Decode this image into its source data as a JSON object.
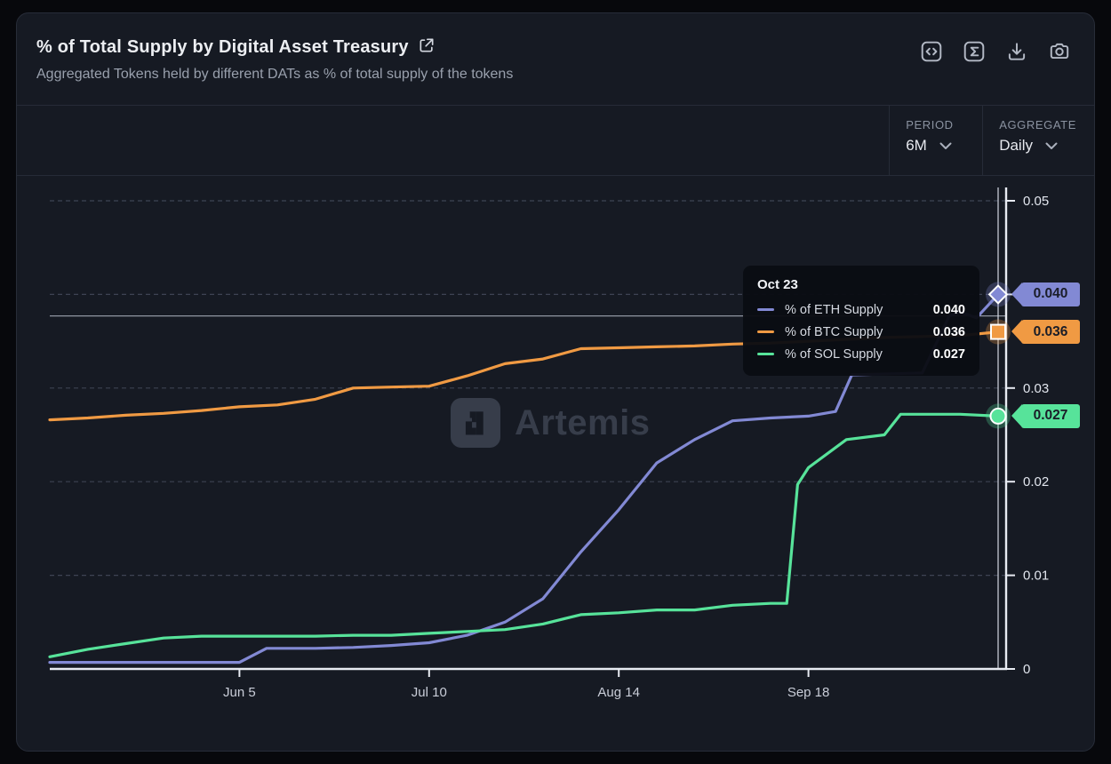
{
  "header": {
    "title": "% of Total Supply by Digital Asset Treasury",
    "subtitle": "Aggregated Tokens held by different DATs as % of total supply of the tokens",
    "toolbar": [
      {
        "name": "embed-code",
        "icon": "code-icon"
      },
      {
        "name": "formula",
        "icon": "sigma-icon"
      },
      {
        "name": "download",
        "icon": "download-icon"
      },
      {
        "name": "snapshot",
        "icon": "camera-icon"
      }
    ]
  },
  "controls": {
    "period": {
      "label": "PERIOD",
      "value": "6M"
    },
    "aggregate": {
      "label": "AGGREGATE",
      "value": "Daily"
    }
  },
  "watermark": {
    "text": "Artemis"
  },
  "tooltip": {
    "date": "Oct 23",
    "rows": [
      {
        "label": "% of ETH Supply",
        "value": "0.040",
        "color": "#8289d4"
      },
      {
        "label": "% of BTC Supply",
        "value": "0.036",
        "color": "#f09a43"
      },
      {
        "label": "% of SOL Supply",
        "value": "0.027",
        "color": "#57e39a"
      }
    ]
  },
  "badges": [
    {
      "value": "0.040",
      "color": "#8289d4",
      "at": 0.04
    },
    {
      "value": "0.036",
      "color": "#f09a43",
      "at": 0.036
    },
    {
      "value": "0.027",
      "color": "#57e39a",
      "at": 0.027
    }
  ],
  "legend": [
    {
      "label": "% of BTC Supply",
      "color": "#f09a43"
    },
    {
      "label": "% of ETH Supply",
      "color": "#8289d4"
    },
    {
      "label": "% of SOL Supply",
      "color": "#57e39a"
    }
  ],
  "chart_data": {
    "type": "line",
    "title": "% of Total Supply by Digital Asset Treasury",
    "x_unit": "days since May 1",
    "xlim_days": [
      0,
      175
    ],
    "ylim": [
      0,
      0.05
    ],
    "grid": "dashed-horizontal",
    "legend_position": "bottom-left",
    "x_ticks": [
      {
        "day": 35,
        "label": "Jun 5"
      },
      {
        "day": 70,
        "label": "Jul 10"
      },
      {
        "day": 105,
        "label": "Aug 14"
      },
      {
        "day": 140,
        "label": "Sep 18"
      }
    ],
    "y_ticks": [
      {
        "v": 0,
        "label": "0"
      },
      {
        "v": 0.01,
        "label": "0.01"
      },
      {
        "v": 0.02,
        "label": "0.02"
      },
      {
        "v": 0.03,
        "label": "0.03"
      },
      {
        "v": 0.04,
        "label": ""
      },
      {
        "v": 0.05,
        "label": "0.05"
      }
    ],
    "hover": {
      "date": "Oct 23",
      "day": 175,
      "crosshair_value": 0.0377
    },
    "series": [
      {
        "name": "% of BTC Supply",
        "color": "#f09a43",
        "marker": "square",
        "end_value": 0.036,
        "points": [
          [
            0,
            0.0266
          ],
          [
            7,
            0.0268
          ],
          [
            14,
            0.0271
          ],
          [
            21,
            0.0273
          ],
          [
            28,
            0.0276
          ],
          [
            35,
            0.028
          ],
          [
            42,
            0.0282
          ],
          [
            49,
            0.0288
          ],
          [
            56,
            0.03
          ],
          [
            63,
            0.0301
          ],
          [
            70,
            0.0302
          ],
          [
            77,
            0.0313
          ],
          [
            84,
            0.0326
          ],
          [
            91,
            0.0331
          ],
          [
            98,
            0.0342
          ],
          [
            105,
            0.0343
          ],
          [
            112,
            0.0344
          ],
          [
            119,
            0.0345
          ],
          [
            126,
            0.0347
          ],
          [
            133,
            0.0348
          ],
          [
            140,
            0.035
          ],
          [
            147,
            0.0352
          ],
          [
            154,
            0.0354
          ],
          [
            161,
            0.0355
          ],
          [
            168,
            0.0356
          ],
          [
            175,
            0.036
          ]
        ]
      },
      {
        "name": "% of ETH Supply",
        "color": "#8289d4",
        "marker": "diamond",
        "end_value": 0.04,
        "points": [
          [
            0,
            0.0007
          ],
          [
            7,
            0.0007
          ],
          [
            14,
            0.0007
          ],
          [
            21,
            0.0007
          ],
          [
            28,
            0.0007
          ],
          [
            35,
            0.0007
          ],
          [
            40,
            0.0022
          ],
          [
            49,
            0.0022
          ],
          [
            56,
            0.0023
          ],
          [
            63,
            0.0025
          ],
          [
            70,
            0.0028
          ],
          [
            77,
            0.0036
          ],
          [
            84,
            0.005
          ],
          [
            91,
            0.0075
          ],
          [
            98,
            0.0125
          ],
          [
            105,
            0.017
          ],
          [
            112,
            0.022
          ],
          [
            119,
            0.0245
          ],
          [
            126,
            0.0265
          ],
          [
            133,
            0.0268
          ],
          [
            140,
            0.027
          ],
          [
            145,
            0.0275
          ],
          [
            148,
            0.0314
          ],
          [
            154,
            0.0315
          ],
          [
            161,
            0.0316
          ],
          [
            166,
            0.0377
          ],
          [
            168,
            0.0381
          ],
          [
            171,
            0.0375
          ],
          [
            175,
            0.04
          ]
        ]
      },
      {
        "name": "% of SOL Supply",
        "color": "#57e39a",
        "marker": "circle",
        "end_value": 0.027,
        "points": [
          [
            0,
            0.0013
          ],
          [
            7,
            0.0021
          ],
          [
            14,
            0.0027
          ],
          [
            21,
            0.0033
          ],
          [
            28,
            0.0035
          ],
          [
            35,
            0.0035
          ],
          [
            42,
            0.0035
          ],
          [
            49,
            0.0035
          ],
          [
            56,
            0.0036
          ],
          [
            63,
            0.0036
          ],
          [
            70,
            0.0038
          ],
          [
            77,
            0.004
          ],
          [
            84,
            0.0042
          ],
          [
            91,
            0.0048
          ],
          [
            98,
            0.0058
          ],
          [
            105,
            0.006
          ],
          [
            112,
            0.0063
          ],
          [
            119,
            0.0063
          ],
          [
            126,
            0.0068
          ],
          [
            133,
            0.007
          ],
          [
            136,
            0.007
          ],
          [
            138,
            0.0197
          ],
          [
            140,
            0.0215
          ],
          [
            147,
            0.0245
          ],
          [
            154,
            0.025
          ],
          [
            157,
            0.0272
          ],
          [
            168,
            0.0272
          ],
          [
            175,
            0.027
          ]
        ]
      }
    ]
  },
  "colors": {
    "card_bg": "#161a23",
    "page_bg": "#07080c",
    "divider": "#262b37",
    "gridline": "#3d4353",
    "axis": "#e8ebf2",
    "tick_label": "#e2e6ee",
    "x_label": "#c9cdd8"
  }
}
